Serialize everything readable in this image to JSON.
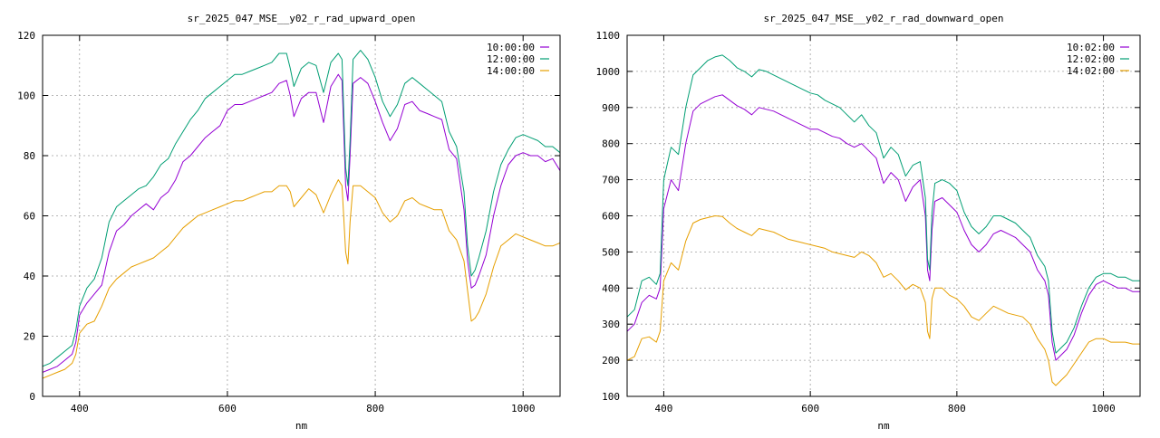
{
  "chart_data": [
    {
      "type": "line",
      "title": "sr_2025_047_MSE__y02_r_rad_upward_open",
      "xlabel": "nm",
      "ylabel": "",
      "xlim": [
        350,
        1050
      ],
      "ylim": [
        0,
        120
      ],
      "xticks": [
        400,
        600,
        800,
        1000
      ],
      "yticks": [
        0,
        20,
        40,
        60,
        80,
        100,
        120
      ],
      "grid": true,
      "legend_position": "top-right",
      "series": [
        {
          "name": "10:00:00",
          "color": "#9400d3",
          "x": [
            350,
            360,
            370,
            380,
            390,
            395,
            400,
            410,
            420,
            430,
            440,
            450,
            460,
            470,
            480,
            490,
            500,
            510,
            520,
            530,
            540,
            550,
            560,
            570,
            580,
            590,
            600,
            610,
            620,
            630,
            640,
            650,
            660,
            670,
            680,
            685,
            690,
            700,
            710,
            720,
            730,
            740,
            750,
            755,
            760,
            763,
            766,
            770,
            780,
            790,
            800,
            810,
            820,
            830,
            840,
            850,
            860,
            870,
            880,
            890,
            900,
            910,
            920,
            925,
            930,
            935,
            940,
            950,
            960,
            970,
            980,
            990,
            1000,
            1010,
            1020,
            1030,
            1040,
            1050
          ],
          "y": [
            8,
            9,
            10,
            12,
            14,
            18,
            27,
            31,
            34,
            37,
            48,
            55,
            57,
            60,
            62,
            64,
            62,
            66,
            68,
            72,
            78,
            80,
            83,
            86,
            88,
            90,
            95,
            97,
            97,
            98,
            99,
            100,
            101,
            104,
            105,
            100,
            93,
            99,
            101,
            101,
            91,
            103,
            107,
            105,
            70,
            65,
            80,
            104,
            106,
            104,
            98,
            91,
            85,
            89,
            97,
            98,
            95,
            94,
            93,
            92,
            82,
            79,
            62,
            45,
            36,
            37,
            40,
            47,
            60,
            70,
            77,
            80,
            81,
            80,
            80,
            78,
            79,
            75
          ]
        },
        {
          "name": "12:00:00",
          "color": "#009e73",
          "x": [
            350,
            360,
            370,
            380,
            390,
            395,
            400,
            410,
            420,
            430,
            440,
            450,
            460,
            470,
            480,
            490,
            500,
            510,
            520,
            530,
            540,
            550,
            560,
            570,
            580,
            590,
            600,
            610,
            620,
            630,
            640,
            650,
            660,
            670,
            680,
            685,
            690,
            700,
            710,
            720,
            730,
            740,
            750,
            755,
            760,
            763,
            766,
            770,
            780,
            790,
            800,
            810,
            820,
            830,
            840,
            850,
            860,
            870,
            880,
            890,
            900,
            910,
            920,
            925,
            930,
            935,
            940,
            950,
            960,
            970,
            980,
            990,
            1000,
            1010,
            1020,
            1030,
            1040,
            1050
          ],
          "y": [
            10,
            11,
            13,
            15,
            17,
            22,
            30,
            36,
            39,
            46,
            58,
            63,
            65,
            67,
            69,
            70,
            73,
            77,
            79,
            84,
            88,
            92,
            95,
            99,
            101,
            103,
            105,
            107,
            107,
            108,
            109,
            110,
            111,
            114,
            114,
            109,
            103,
            109,
            111,
            110,
            101,
            111,
            114,
            112,
            76,
            70,
            85,
            112,
            115,
            112,
            106,
            98,
            93,
            97,
            104,
            106,
            104,
            102,
            100,
            98,
            88,
            83,
            68,
            50,
            40,
            42,
            46,
            55,
            68,
            77,
            82,
            86,
            87,
            86,
            85,
            83,
            83,
            81
          ]
        },
        {
          "name": "14:00:00",
          "color": "#e69f00",
          "x": [
            350,
            360,
            370,
            380,
            390,
            395,
            400,
            410,
            420,
            430,
            440,
            450,
            460,
            470,
            480,
            490,
            500,
            510,
            520,
            530,
            540,
            550,
            560,
            570,
            580,
            590,
            600,
            610,
            620,
            630,
            640,
            650,
            660,
            670,
            680,
            685,
            690,
            700,
            710,
            720,
            730,
            740,
            750,
            755,
            760,
            763,
            766,
            770,
            780,
            790,
            800,
            810,
            820,
            830,
            840,
            850,
            860,
            870,
            880,
            890,
            900,
            910,
            920,
            925,
            930,
            935,
            940,
            950,
            960,
            970,
            980,
            990,
            1000,
            1010,
            1020,
            1030,
            1040,
            1050
          ],
          "y": [
            6,
            7,
            8,
            9,
            11,
            14,
            21,
            24,
            25,
            30,
            36,
            39,
            41,
            43,
            44,
            45,
            46,
            48,
            50,
            53,
            56,
            58,
            60,
            61,
            62,
            63,
            64,
            65,
            65,
            66,
            67,
            68,
            68,
            70,
            70,
            68,
            63,
            66,
            69,
            67,
            61,
            67,
            72,
            70,
            48,
            44,
            58,
            70,
            70,
            68,
            66,
            61,
            58,
            60,
            65,
            66,
            64,
            63,
            62,
            62,
            55,
            52,
            45,
            35,
            25,
            26,
            28,
            34,
            43,
            50,
            52,
            54,
            53,
            52,
            51,
            50,
            50,
            51
          ]
        }
      ]
    },
    {
      "type": "line",
      "title": "sr_2025_047_MSE__y02_r_rad_downward_open",
      "xlabel": "nm",
      "ylabel": "",
      "xlim": [
        350,
        1050
      ],
      "ylim": [
        100,
        1100
      ],
      "xticks": [
        400,
        600,
        800,
        1000
      ],
      "yticks": [
        100,
        200,
        300,
        400,
        500,
        600,
        700,
        800,
        900,
        1000,
        1100
      ],
      "grid": true,
      "legend_position": "top-right",
      "series": [
        {
          "name": "10:02:00",
          "color": "#9400d3",
          "x": [
            350,
            360,
            370,
            380,
            390,
            395,
            400,
            410,
            420,
            430,
            440,
            450,
            460,
            470,
            480,
            490,
            500,
            510,
            520,
            530,
            540,
            550,
            560,
            570,
            580,
            590,
            600,
            610,
            620,
            630,
            640,
            650,
            660,
            670,
            680,
            690,
            700,
            710,
            720,
            730,
            740,
            750,
            757,
            760,
            763,
            766,
            770,
            780,
            790,
            800,
            810,
            820,
            830,
            840,
            850,
            860,
            870,
            880,
            890,
            900,
            910,
            920,
            925,
            930,
            935,
            940,
            950,
            960,
            970,
            980,
            990,
            1000,
            1010,
            1020,
            1030,
            1040,
            1050
          ],
          "y": [
            280,
            300,
            360,
            380,
            370,
            400,
            620,
            700,
            670,
            800,
            890,
            910,
            920,
            930,
            935,
            920,
            905,
            895,
            880,
            900,
            895,
            890,
            880,
            870,
            860,
            850,
            840,
            840,
            830,
            820,
            815,
            800,
            790,
            800,
            780,
            760,
            690,
            720,
            700,
            640,
            680,
            700,
            600,
            450,
            420,
            560,
            640,
            650,
            630,
            610,
            560,
            520,
            500,
            520,
            550,
            560,
            550,
            540,
            520,
            500,
            450,
            420,
            380,
            250,
            200,
            210,
            230,
            270,
            330,
            380,
            410,
            420,
            410,
            400,
            400,
            390,
            390
          ]
        },
        {
          "name": "12:02:00",
          "color": "#009e73",
          "x": [
            350,
            360,
            370,
            380,
            390,
            395,
            400,
            410,
            420,
            430,
            440,
            450,
            460,
            470,
            480,
            490,
            500,
            510,
            520,
            530,
            540,
            550,
            560,
            570,
            580,
            590,
            600,
            610,
            620,
            630,
            640,
            650,
            660,
            670,
            680,
            690,
            700,
            710,
            720,
            730,
            740,
            750,
            757,
            760,
            763,
            766,
            770,
            780,
            790,
            800,
            810,
            820,
            830,
            840,
            850,
            860,
            870,
            880,
            890,
            900,
            910,
            920,
            925,
            930,
            935,
            940,
            950,
            960,
            970,
            980,
            990,
            1000,
            1010,
            1020,
            1030,
            1040,
            1050
          ],
          "y": [
            320,
            340,
            420,
            430,
            410,
            440,
            700,
            790,
            770,
            900,
            990,
            1010,
            1030,
            1040,
            1045,
            1030,
            1010,
            1000,
            985,
            1005,
            1000,
            990,
            980,
            970,
            960,
            950,
            940,
            935,
            920,
            910,
            900,
            880,
            860,
            880,
            850,
            830,
            760,
            790,
            770,
            710,
            740,
            750,
            650,
            480,
            450,
            610,
            690,
            700,
            690,
            670,
            610,
            570,
            550,
            570,
            600,
            600,
            590,
            580,
            560,
            540,
            490,
            460,
            420,
            280,
            220,
            230,
            250,
            290,
            350,
            400,
            430,
            440,
            440,
            430,
            430,
            420,
            420
          ]
        },
        {
          "name": "14:02:00",
          "color": "#e69f00",
          "x": [
            350,
            360,
            370,
            380,
            390,
            395,
            400,
            410,
            420,
            430,
            440,
            450,
            460,
            470,
            480,
            490,
            500,
            510,
            520,
            530,
            540,
            550,
            560,
            570,
            580,
            590,
            600,
            610,
            620,
            630,
            640,
            650,
            660,
            670,
            680,
            690,
            700,
            710,
            720,
            730,
            740,
            750,
            757,
            760,
            763,
            766,
            770,
            780,
            790,
            800,
            810,
            820,
            830,
            840,
            850,
            860,
            870,
            880,
            890,
            900,
            910,
            920,
            925,
            930,
            935,
            940,
            950,
            960,
            970,
            980,
            990,
            1000,
            1010,
            1020,
            1030,
            1040,
            1050
          ],
          "y": [
            200,
            210,
            260,
            265,
            250,
            280,
            420,
            470,
            450,
            530,
            580,
            590,
            595,
            600,
            598,
            580,
            565,
            555,
            545,
            565,
            560,
            555,
            545,
            535,
            530,
            525,
            520,
            515,
            510,
            500,
            495,
            490,
            485,
            500,
            490,
            470,
            430,
            440,
            420,
            395,
            410,
            400,
            360,
            280,
            260,
            370,
            400,
            400,
            380,
            370,
            350,
            320,
            310,
            330,
            350,
            340,
            330,
            325,
            320,
            300,
            260,
            230,
            200,
            140,
            130,
            140,
            160,
            190,
            220,
            250,
            260,
            260,
            250,
            250,
            250,
            245,
            245
          ]
        }
      ]
    }
  ]
}
